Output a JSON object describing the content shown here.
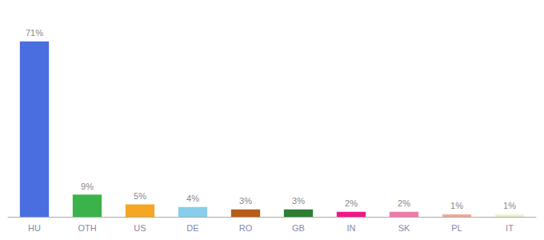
{
  "chart_data": {
    "type": "bar",
    "categories": [
      "HU",
      "OTH",
      "US",
      "DE",
      "RO",
      "GB",
      "IN",
      "SK",
      "PL",
      "IT"
    ],
    "values": [
      71,
      9,
      5,
      4,
      3,
      3,
      2,
      2,
      1,
      1
    ],
    "value_labels": [
      "71%",
      "9%",
      "5%",
      "4%",
      "3%",
      "3%",
      "2%",
      "2%",
      "1%",
      "1%"
    ],
    "colors": [
      "#4a6ee0",
      "#3cb34a",
      "#f5a623",
      "#87ceeb",
      "#b85c1a",
      "#2e7d32",
      "#f01888",
      "#f07aaa",
      "#f0a898",
      "#f0f0d0"
    ],
    "ylim": [
      0,
      80
    ],
    "grid": false,
    "data_labels": true,
    "tick_labels": "x"
  }
}
